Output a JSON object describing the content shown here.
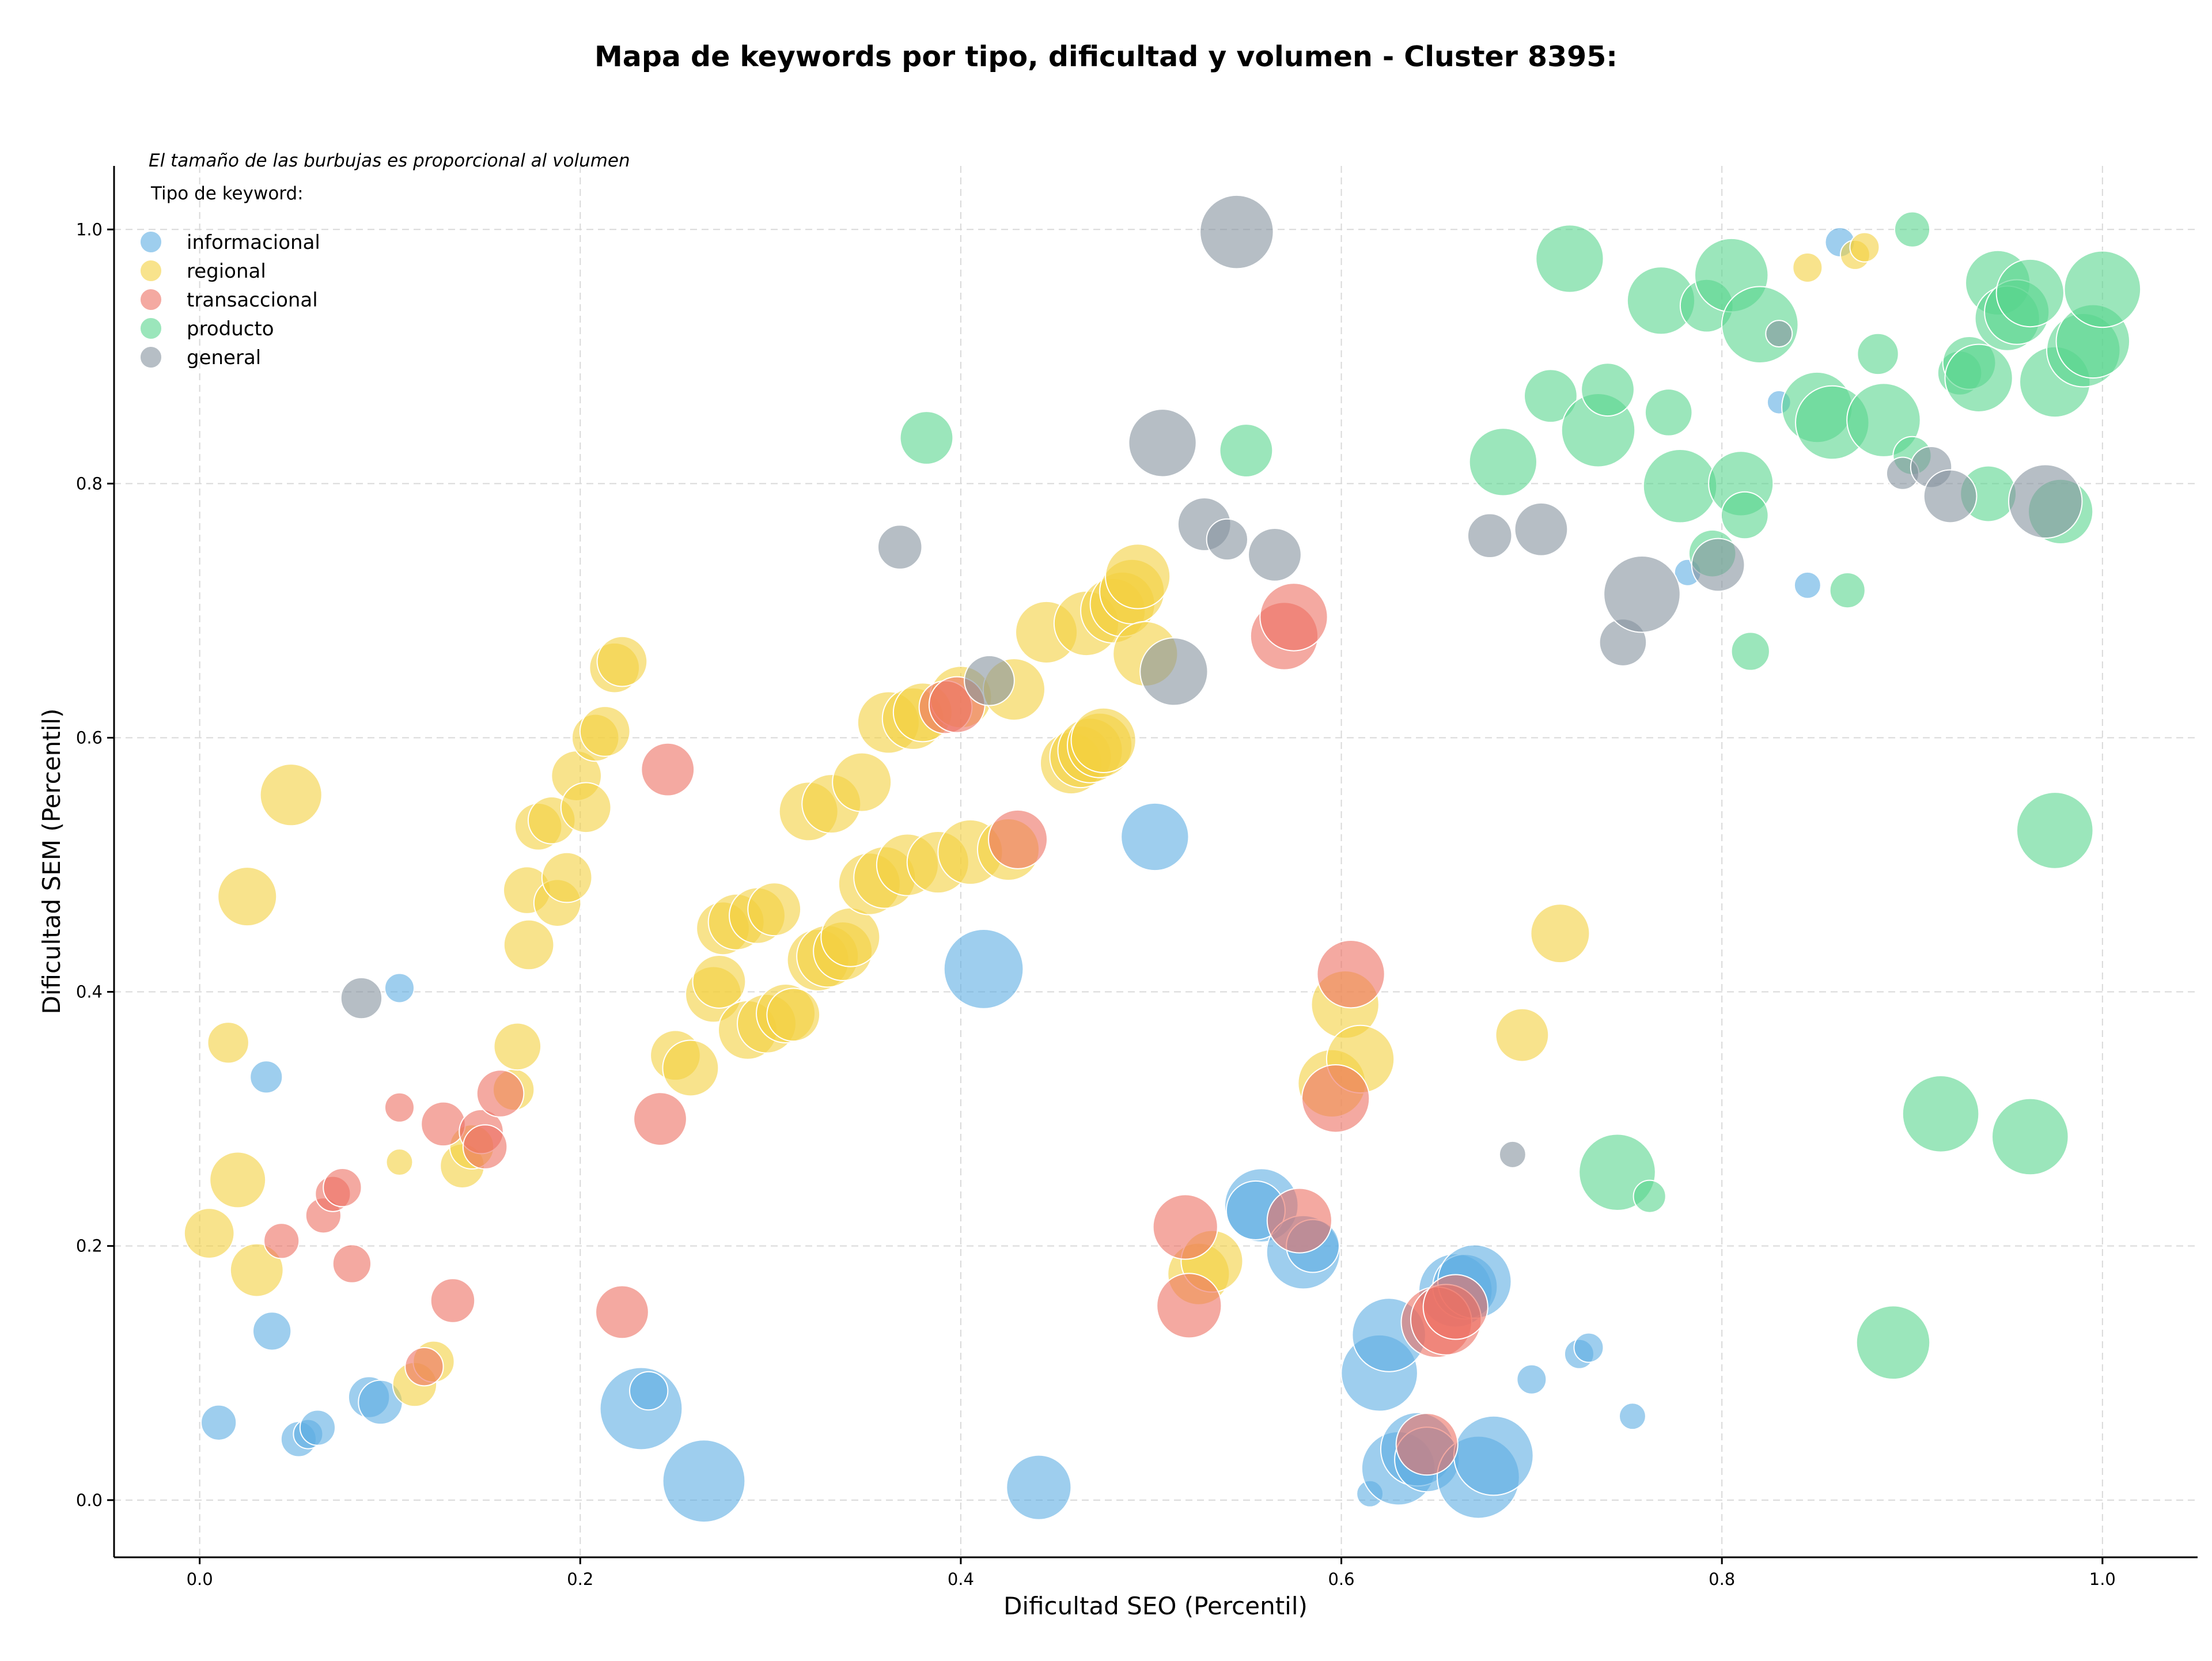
{
  "chart_data": {
    "type": "scatter",
    "title": "Mapa de keywords por tipo, dificultad y volumen - Cluster 8395:",
    "note": "El tamaño de las burbujas es proporcional al volumen",
    "xlabel": "Dificultad SEO (Percentil)",
    "ylabel": "Dificultad SEM (Percentil)",
    "xlim": [
      -0.045,
      1.05
    ],
    "ylim": [
      -0.045,
      1.05
    ],
    "xticks": [
      "0.0",
      "0.2",
      "0.4",
      "0.6",
      "0.8",
      "1.0"
    ],
    "yticks": [
      "0.0",
      "0.2",
      "0.4",
      "0.6",
      "0.8",
      "1.0"
    ],
    "grid": true,
    "legend_title": "Tipo de keyword:",
    "legend_position": "top-left",
    "series": [
      {
        "name": "informacional",
        "color": "#5DADE2",
        "points": [
          [
            0.01,
            0.061,
            12
          ],
          [
            0.035,
            0.333,
            11
          ],
          [
            0.038,
            0.133,
            13
          ],
          [
            0.052,
            0.048,
            12
          ],
          [
            0.057,
            0.052,
            10
          ],
          [
            0.062,
            0.057,
            12
          ],
          [
            0.089,
            0.081,
            14
          ],
          [
            0.095,
            0.077,
            15
          ],
          [
            0.105,
            0.403,
            10
          ],
          [
            0.232,
            0.072,
            28
          ],
          [
            0.236,
            0.086,
            13
          ],
          [
            0.265,
            0.015,
            28
          ],
          [
            0.412,
            0.418,
            27
          ],
          [
            0.441,
            0.01,
            22
          ],
          [
            0.502,
            0.522,
            23
          ],
          [
            0.558,
            0.232,
            25
          ],
          [
            0.555,
            0.228,
            20
          ],
          [
            0.58,
            0.195,
            25
          ],
          [
            0.585,
            0.2,
            18
          ],
          [
            0.615,
            0.005,
            9
          ],
          [
            0.62,
            0.1,
            26
          ],
          [
            0.625,
            0.13,
            25
          ],
          [
            0.63,
            0.025,
            25
          ],
          [
            0.64,
            0.04,
            25
          ],
          [
            0.645,
            0.032,
            22
          ],
          [
            0.66,
            0.165,
            25
          ],
          [
            0.665,
            0.168,
            22
          ],
          [
            0.67,
            0.172,
            25
          ],
          [
            0.672,
            0.018,
            28
          ],
          [
            0.68,
            0.035,
            27
          ],
          [
            0.7,
            0.095,
            10
          ],
          [
            0.725,
            0.115,
            10
          ],
          [
            0.73,
            0.12,
            10
          ],
          [
            0.753,
            0.066,
            9
          ],
          [
            0.782,
            0.73,
            9
          ],
          [
            0.83,
            0.864,
            8
          ],
          [
            0.845,
            0.72,
            9
          ],
          [
            0.862,
            0.99,
            10
          ]
        ]
      },
      {
        "name": "regional",
        "color": "#F4D03F",
        "points": [
          [
            0.005,
            0.21,
            17
          ],
          [
            0.015,
            0.36,
            14
          ],
          [
            0.02,
            0.252,
            19
          ],
          [
            0.025,
            0.475,
            20
          ],
          [
            0.03,
            0.181,
            18
          ],
          [
            0.048,
            0.555,
            21
          ],
          [
            0.105,
            0.266,
            9
          ],
          [
            0.113,
            0.091,
            15
          ],
          [
            0.123,
            0.109,
            14
          ],
          [
            0.138,
            0.263,
            15
          ],
          [
            0.143,
            0.278,
            15
          ],
          [
            0.165,
            0.323,
            14
          ],
          [
            0.167,
            0.357,
            16
          ],
          [
            0.172,
            0.48,
            16
          ],
          [
            0.173,
            0.437,
            17
          ],
          [
            0.178,
            0.53,
            16
          ],
          [
            0.185,
            0.535,
            16
          ],
          [
            0.188,
            0.47,
            16
          ],
          [
            0.193,
            0.49,
            17
          ],
          [
            0.198,
            0.57,
            17
          ],
          [
            0.203,
            0.545,
            17
          ],
          [
            0.208,
            0.6,
            16
          ],
          [
            0.213,
            0.605,
            17
          ],
          [
            0.218,
            0.655,
            17
          ],
          [
            0.222,
            0.66,
            17
          ],
          [
            0.25,
            0.35,
            17
          ],
          [
            0.258,
            0.34,
            19
          ],
          [
            0.27,
            0.398,
            19
          ],
          [
            0.273,
            0.408,
            18
          ],
          [
            0.275,
            0.45,
            18
          ],
          [
            0.282,
            0.455,
            19
          ],
          [
            0.288,
            0.37,
            20
          ],
          [
            0.293,
            0.46,
            19
          ],
          [
            0.298,
            0.375,
            20
          ],
          [
            0.302,
            0.465,
            18
          ],
          [
            0.308,
            0.383,
            20
          ],
          [
            0.312,
            0.382,
            18
          ],
          [
            0.32,
            0.542,
            20
          ],
          [
            0.325,
            0.425,
            21
          ],
          [
            0.33,
            0.428,
            21
          ],
          [
            0.332,
            0.548,
            20
          ],
          [
            0.338,
            0.432,
            20
          ],
          [
            0.342,
            0.443,
            20
          ],
          [
            0.348,
            0.565,
            20
          ],
          [
            0.352,
            0.485,
            21
          ],
          [
            0.36,
            0.49,
            21
          ],
          [
            0.362,
            0.612,
            21
          ],
          [
            0.372,
            0.5,
            21
          ],
          [
            0.375,
            0.615,
            21
          ],
          [
            0.38,
            0.62,
            20
          ],
          [
            0.388,
            0.502,
            21
          ],
          [
            0.4,
            0.632,
            21
          ],
          [
            0.405,
            0.51,
            22
          ],
          [
            0.425,
            0.512,
            21
          ],
          [
            0.428,
            0.638,
            21
          ],
          [
            0.445,
            0.683,
            21
          ],
          [
            0.458,
            0.58,
            21
          ],
          [
            0.463,
            0.585,
            21
          ],
          [
            0.466,
            0.69,
            22
          ],
          [
            0.468,
            0.59,
            22
          ],
          [
            0.473,
            0.594,
            22
          ],
          [
            0.475,
            0.598,
            22
          ],
          [
            0.48,
            0.7,
            22
          ],
          [
            0.485,
            0.705,
            22
          ],
          [
            0.49,
            0.715,
            22
          ],
          [
            0.493,
            0.727,
            22
          ],
          [
            0.497,
            0.666,
            22
          ],
          [
            0.525,
            0.178,
            21
          ],
          [
            0.532,
            0.188,
            21
          ],
          [
            0.595,
            0.328,
            23
          ],
          [
            0.602,
            0.39,
            23
          ],
          [
            0.61,
            0.347,
            23
          ],
          [
            0.695,
            0.366,
            18
          ],
          [
            0.715,
            0.446,
            20
          ],
          [
            0.845,
            0.97,
            10
          ],
          [
            0.87,
            0.98,
            10
          ],
          [
            0.875,
            0.986,
            10
          ]
        ]
      },
      {
        "name": "transaccional",
        "color": "#EC7063",
        "points": [
          [
            0.043,
            0.204,
            12
          ],
          [
            0.065,
            0.224,
            12
          ],
          [
            0.07,
            0.241,
            12
          ],
          [
            0.075,
            0.246,
            13
          ],
          [
            0.08,
            0.186,
            13
          ],
          [
            0.105,
            0.309,
            10
          ],
          [
            0.118,
            0.105,
            13
          ],
          [
            0.128,
            0.296,
            15
          ],
          [
            0.133,
            0.157,
            15
          ],
          [
            0.148,
            0.29,
            15
          ],
          [
            0.15,
            0.278,
            15
          ],
          [
            0.158,
            0.32,
            16
          ],
          [
            0.222,
            0.148,
            18
          ],
          [
            0.242,
            0.3,
            18
          ],
          [
            0.246,
            0.575,
            18
          ],
          [
            0.392,
            0.624,
            18
          ],
          [
            0.398,
            0.626,
            19
          ],
          [
            0.43,
            0.52,
            20
          ],
          [
            0.518,
            0.215,
            22
          ],
          [
            0.52,
            0.153,
            22
          ],
          [
            0.578,
            0.22,
            22
          ],
          [
            0.57,
            0.68,
            23
          ],
          [
            0.575,
            0.695,
            23
          ],
          [
            0.597,
            0.316,
            23
          ],
          [
            0.605,
            0.414,
            23
          ],
          [
            0.645,
            0.044,
            21
          ],
          [
            0.65,
            0.14,
            24
          ],
          [
            0.655,
            0.142,
            24
          ],
          [
            0.66,
            0.152,
            22
          ]
        ]
      },
      {
        "name": "producto",
        "color": "#58D68D",
        "points": [
          [
            0.382,
            0.836,
            18
          ],
          [
            0.55,
            0.826,
            18
          ],
          [
            0.685,
            0.817,
            23
          ],
          [
            0.71,
            0.869,
            18
          ],
          [
            0.72,
            0.977,
            23
          ],
          [
            0.735,
            0.842,
            25
          ],
          [
            0.74,
            0.874,
            18
          ],
          [
            0.745,
            0.258,
            26
          ],
          [
            0.762,
            0.239,
            11
          ],
          [
            0.768,
            0.944,
            23
          ],
          [
            0.772,
            0.856,
            16
          ],
          [
            0.778,
            0.798,
            25
          ],
          [
            0.792,
            0.94,
            18
          ],
          [
            0.795,
            0.745,
            16
          ],
          [
            0.805,
            0.964,
            25
          ],
          [
            0.81,
            0.8,
            22
          ],
          [
            0.812,
            0.775,
            16
          ],
          [
            0.815,
            0.668,
            13
          ],
          [
            0.82,
            0.925,
            26
          ],
          [
            0.85,
            0.86,
            24
          ],
          [
            0.858,
            0.848,
            25
          ],
          [
            0.866,
            0.716,
            12
          ],
          [
            0.882,
            0.902,
            14
          ],
          [
            0.885,
            0.85,
            25
          ],
          [
            0.89,
            0.124,
            25
          ],
          [
            0.9,
            1.0,
            12
          ],
          [
            0.9,
            0.822,
            13
          ],
          [
            0.915,
            0.304,
            26
          ],
          [
            0.925,
            0.887,
            15
          ],
          [
            0.93,
            0.895,
            18
          ],
          [
            0.935,
            0.883,
            23
          ],
          [
            0.94,
            0.792,
            19
          ],
          [
            0.945,
            0.958,
            22
          ],
          [
            0.95,
            0.93,
            22
          ],
          [
            0.955,
            0.935,
            22
          ],
          [
            0.962,
            0.95,
            23
          ],
          [
            0.962,
            0.286,
            26
          ],
          [
            0.975,
            0.527,
            26
          ],
          [
            0.975,
            0.88,
            24
          ],
          [
            0.978,
            0.778,
            22
          ],
          [
            0.99,
            0.905,
            25
          ],
          [
            0.995,
            0.912,
            25
          ],
          [
            1.0,
            0.953,
            26
          ]
        ]
      },
      {
        "name": "general",
        "color": "#85929E",
        "points": [
          [
            0.085,
            0.395,
            14
          ],
          [
            0.368,
            0.75,
            15
          ],
          [
            0.415,
            0.645,
            17
          ],
          [
            0.506,
            0.832,
            23
          ],
          [
            0.512,
            0.652,
            23
          ],
          [
            0.528,
            0.768,
            18
          ],
          [
            0.54,
            0.756,
            14
          ],
          [
            0.545,
            0.998,
            25
          ],
          [
            0.565,
            0.744,
            18
          ],
          [
            0.69,
            0.272,
            9
          ],
          [
            0.678,
            0.759,
            15
          ],
          [
            0.705,
            0.764,
            18
          ],
          [
            0.748,
            0.675,
            16
          ],
          [
            0.758,
            0.713,
            26
          ],
          [
            0.798,
            0.736,
            18
          ],
          [
            0.83,
            0.918,
            9
          ],
          [
            0.895,
            0.808,
            11
          ],
          [
            0.91,
            0.813,
            14
          ],
          [
            0.92,
            0.79,
            18
          ],
          [
            0.97,
            0.786,
            25
          ]
        ]
      }
    ]
  }
}
